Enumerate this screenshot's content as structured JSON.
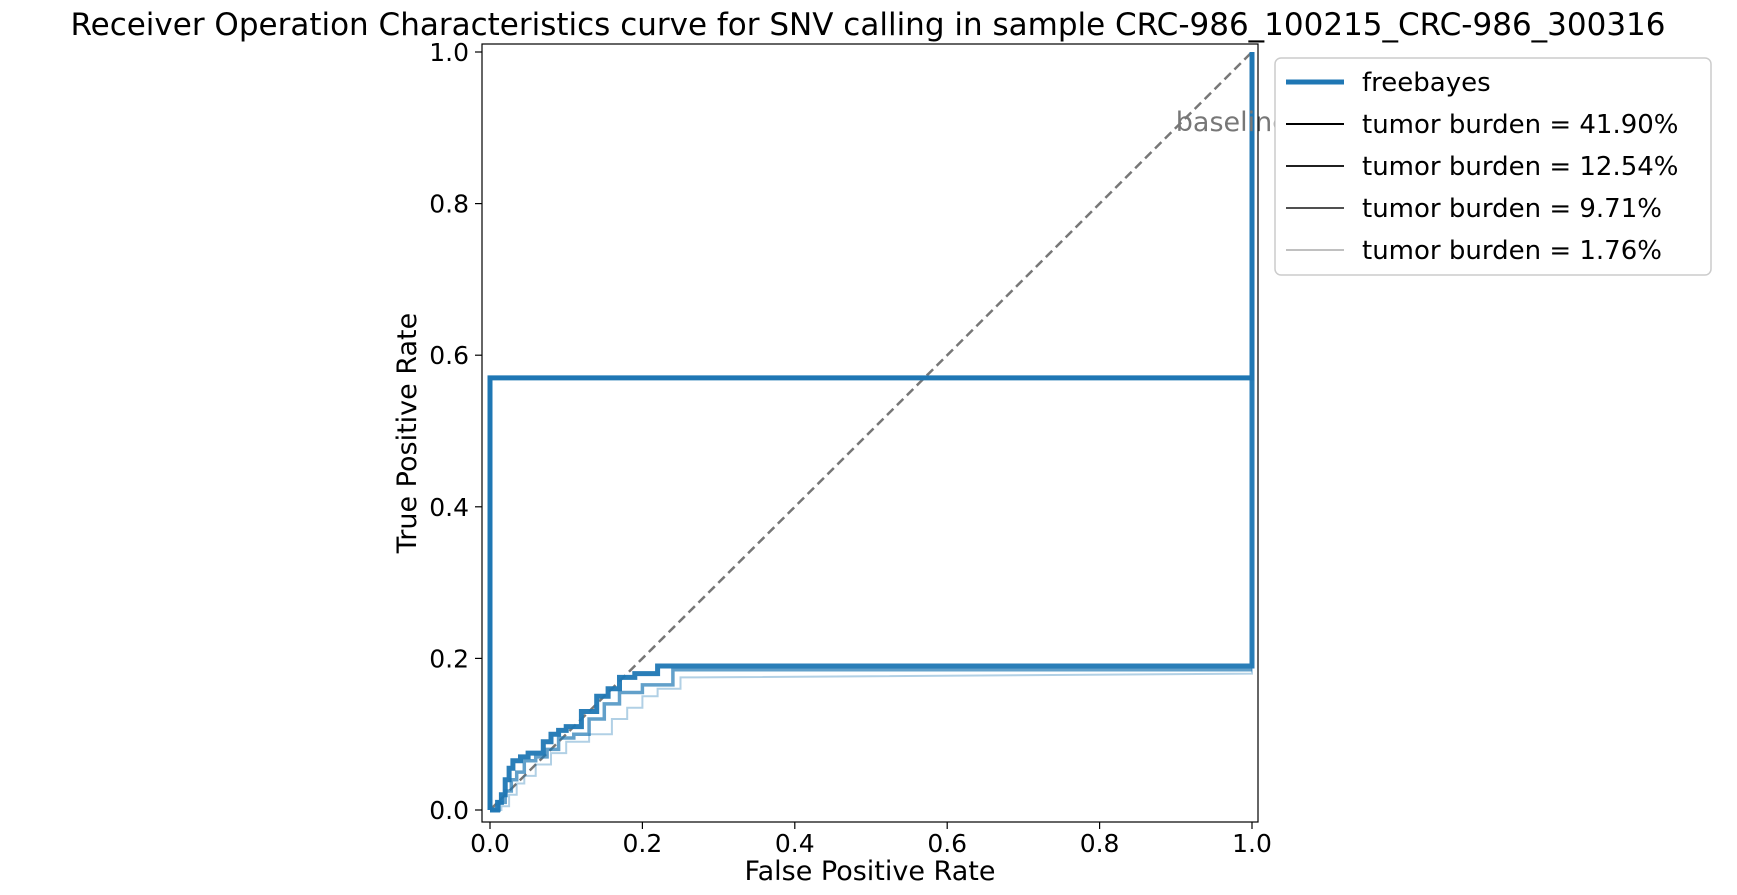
{
  "chart_data": {
    "type": "line",
    "title": "Receiver Operation Characteristics curve for SNV calling in sample CRC-986_100215_CRC-986_300316",
    "xlabel": "False Positive Rate",
    "ylabel": "True Positive Rate",
    "xlim": [
      0.0,
      1.0
    ],
    "ylim": [
      0.0,
      1.0
    ],
    "xticks": [
      0.0,
      0.2,
      0.4,
      0.6,
      0.8,
      1.0
    ],
    "yticks": [
      0.0,
      0.2,
      0.4,
      0.6,
      0.8,
      1.0
    ],
    "xtick_labels": [
      "0.0",
      "0.2",
      "0.4",
      "0.6",
      "0.8",
      "1.0"
    ],
    "ytick_labels": [
      "0.0",
      "0.2",
      "0.4",
      "0.6",
      "0.8",
      "1.0"
    ],
    "grid": false,
    "legend_position": "outside-top-right",
    "annotation": {
      "text": "baseline",
      "x": 0.9,
      "y": 0.9,
      "color": "#777777"
    },
    "baseline": {
      "x": [
        0.0,
        1.0
      ],
      "y": [
        0.0,
        1.0
      ],
      "color": "#777777",
      "style": "dashed"
    },
    "legend": [
      {
        "label": "freebayes",
        "color": "#1f77b4"
      },
      {
        "label": "tumor burden = 41.90%",
        "color": "#000000"
      },
      {
        "label": "tumor burden = 12.54%",
        "color": "#202020"
      },
      {
        "label": "tumor burden = 9.71%",
        "color": "#505050"
      },
      {
        "label": "tumor burden = 1.76%",
        "color": "#c0c0c0"
      }
    ],
    "series": [
      {
        "name": "tumor burden = 41.90%",
        "color": "#1f77b4",
        "opacity": 1.0,
        "x": [
          0.0,
          0.0,
          0.002,
          0.002,
          1.0,
          1.0
        ],
        "y": [
          0.0,
          0.57,
          0.57,
          0.57,
          0.57,
          1.0
        ]
      },
      {
        "name": "tumor burden = 12.54%",
        "color": "#1f77b4",
        "opacity": 0.95,
        "x": [
          0.0,
          0.01,
          0.01,
          0.015,
          0.015,
          0.02,
          0.02,
          0.025,
          0.025,
          0.03,
          0.03,
          0.04,
          0.04,
          0.05,
          0.05,
          0.07,
          0.07,
          0.08,
          0.08,
          0.09,
          0.09,
          0.1,
          0.1,
          0.12,
          0.12,
          0.14,
          0.14,
          0.155,
          0.155,
          0.17,
          0.17,
          0.19,
          0.19,
          0.22,
          0.22,
          0.26,
          1.0,
          1.0
        ],
        "y": [
          0.0,
          0.0,
          0.01,
          0.01,
          0.02,
          0.02,
          0.04,
          0.04,
          0.055,
          0.055,
          0.065,
          0.065,
          0.07,
          0.07,
          0.075,
          0.075,
          0.09,
          0.09,
          0.1,
          0.1,
          0.105,
          0.105,
          0.11,
          0.11,
          0.13,
          0.13,
          0.15,
          0.15,
          0.16,
          0.16,
          0.175,
          0.175,
          0.18,
          0.18,
          0.19,
          0.19,
          0.19,
          1.0
        ]
      },
      {
        "name": "tumor burden = 9.71%",
        "color": "#1f77b4",
        "opacity": 0.7,
        "x": [
          0.0,
          0.012,
          0.012,
          0.02,
          0.02,
          0.028,
          0.028,
          0.035,
          0.035,
          0.045,
          0.045,
          0.06,
          0.06,
          0.075,
          0.075,
          0.09,
          0.09,
          0.11,
          0.11,
          0.13,
          0.13,
          0.15,
          0.15,
          0.17,
          0.17,
          0.2,
          0.2,
          0.24,
          0.24,
          0.27,
          1.0
        ],
        "y": [
          0.0,
          0.0,
          0.01,
          0.01,
          0.025,
          0.025,
          0.04,
          0.04,
          0.05,
          0.05,
          0.065,
          0.065,
          0.07,
          0.07,
          0.08,
          0.08,
          0.095,
          0.095,
          0.1,
          0.1,
          0.12,
          0.12,
          0.14,
          0.14,
          0.155,
          0.155,
          0.165,
          0.165,
          0.185,
          0.185,
          0.185
        ]
      },
      {
        "name": "tumor burden = 1.76%",
        "color": "#1f77b4",
        "opacity": 0.35,
        "x": [
          0.0,
          0.015,
          0.015,
          0.025,
          0.025,
          0.035,
          0.035,
          0.045,
          0.045,
          0.06,
          0.06,
          0.08,
          0.08,
          0.1,
          0.1,
          0.13,
          0.13,
          0.16,
          0.16,
          0.18,
          0.18,
          0.2,
          0.2,
          0.22,
          0.22,
          0.25,
          0.25,
          0.27,
          1.0,
          1.0
        ],
        "y": [
          0.0,
          0.0,
          0.005,
          0.005,
          0.02,
          0.02,
          0.035,
          0.035,
          0.045,
          0.045,
          0.06,
          0.06,
          0.075,
          0.075,
          0.09,
          0.09,
          0.1,
          0.1,
          0.12,
          0.12,
          0.135,
          0.135,
          0.15,
          0.15,
          0.16,
          0.16,
          0.175,
          0.175,
          0.18,
          1.0
        ]
      }
    ]
  }
}
